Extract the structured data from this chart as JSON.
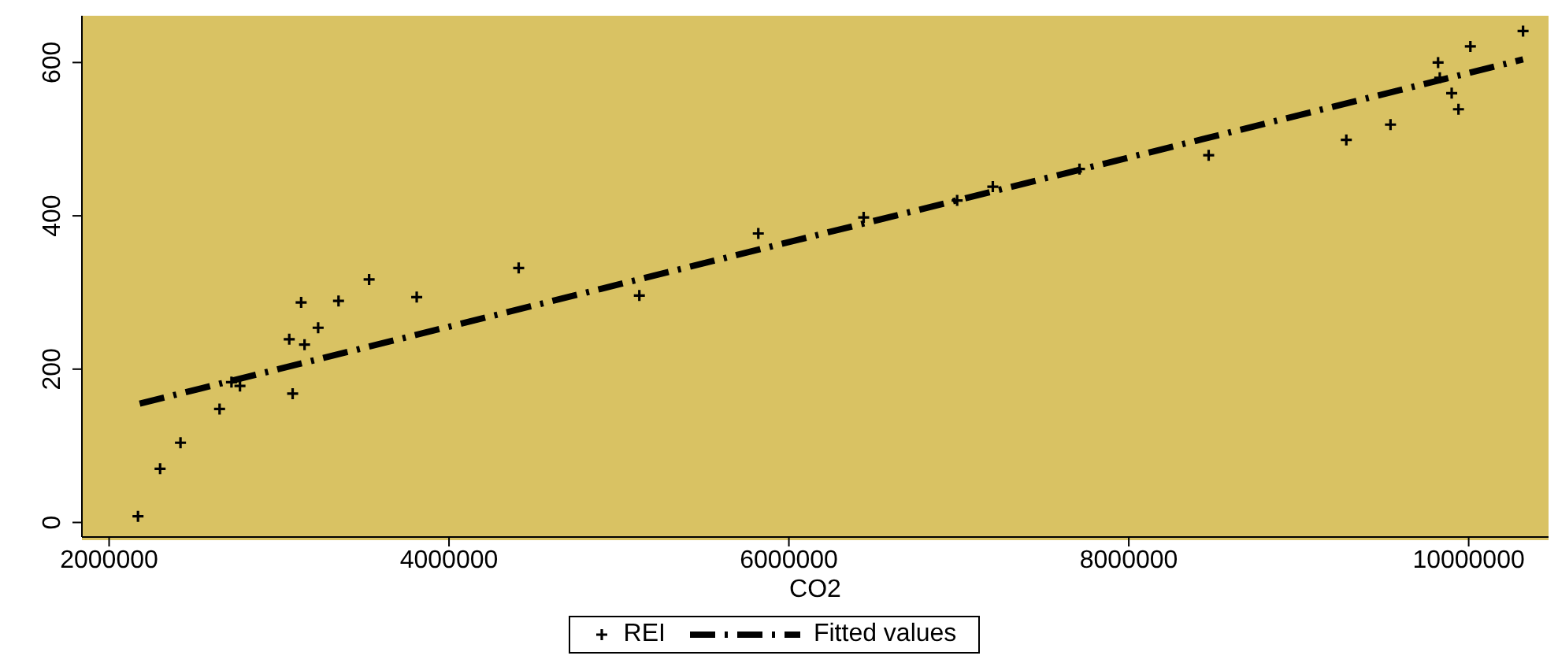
{
  "chart_data": {
    "type": "scatter",
    "xlabel": "CO2",
    "xlim": [
      1840000,
      10470000
    ],
    "xticks": [
      2000000,
      4000000,
      6000000,
      8000000,
      10000000
    ],
    "ylim": [
      -19,
      661
    ],
    "yticks": [
      0,
      200,
      400,
      600
    ],
    "legend": "bottom",
    "marker": "cross",
    "line_style": "dashed",
    "series": [
      {
        "name": "REI",
        "color": "#000000",
        "x": [
          2170000,
          2300000,
          2420000,
          2650000,
          2720000,
          2770000,
          3080000,
          3060000,
          3150000,
          3130000,
          3230000,
          3350000,
          3530000,
          3810000,
          4410000,
          5120000,
          5820000,
          6440000,
          6990000,
          7200000,
          7710000,
          8470000,
          9280000,
          9540000,
          9820000,
          9830000,
          9900000,
          9940000,
          10010000,
          10320000
        ],
        "values": [
          8,
          70,
          104,
          148,
          183,
          178,
          168,
          239,
          232,
          287,
          254,
          289,
          317,
          294,
          332,
          296,
          377,
          398,
          420,
          438,
          461,
          479,
          499,
          519,
          600,
          580,
          560,
          539,
          621,
          641
        ]
      },
      {
        "name": "Fitted values",
        "type": "line",
        "marker": "none",
        "color": "#000000",
        "x": [
          2180000,
          10320000
        ],
        "values": [
          155,
          604
        ]
      }
    ]
  }
}
